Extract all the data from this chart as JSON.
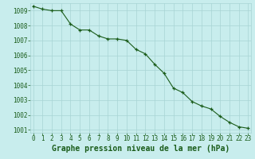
{
  "x": [
    0,
    1,
    2,
    3,
    4,
    5,
    6,
    7,
    8,
    9,
    10,
    11,
    12,
    13,
    14,
    15,
    16,
    17,
    18,
    19,
    20,
    21,
    22,
    23
  ],
  "y": [
    1009.3,
    1009.1,
    1009.0,
    1009.0,
    1008.1,
    1007.7,
    1007.7,
    1007.3,
    1007.1,
    1007.1,
    1007.0,
    1006.4,
    1006.1,
    1005.4,
    1004.8,
    1003.8,
    1003.5,
    1002.9,
    1002.6,
    1002.4,
    1001.9,
    1001.5,
    1001.2,
    1001.1
  ],
  "ylim": [
    1000.8,
    1009.5
  ],
  "xlim": [
    -0.3,
    23.3
  ],
  "yticks": [
    1001,
    1002,
    1003,
    1004,
    1005,
    1006,
    1007,
    1008,
    1009
  ],
  "xticks": [
    0,
    1,
    2,
    3,
    4,
    5,
    6,
    7,
    8,
    9,
    10,
    11,
    12,
    13,
    14,
    15,
    16,
    17,
    18,
    19,
    20,
    21,
    22,
    23
  ],
  "line_color": "#1a5c1a",
  "marker_color": "#1a5c1a",
  "bg_color": "#c8eded",
  "grid_color": "#a8d4d4",
  "xlabel": "Graphe pression niveau de la mer (hPa)",
  "xlabel_color": "#1a5c1a",
  "tick_color": "#1a5c1a",
  "tick_fontsize": 5.5,
  "xlabel_fontsize": 7.0
}
